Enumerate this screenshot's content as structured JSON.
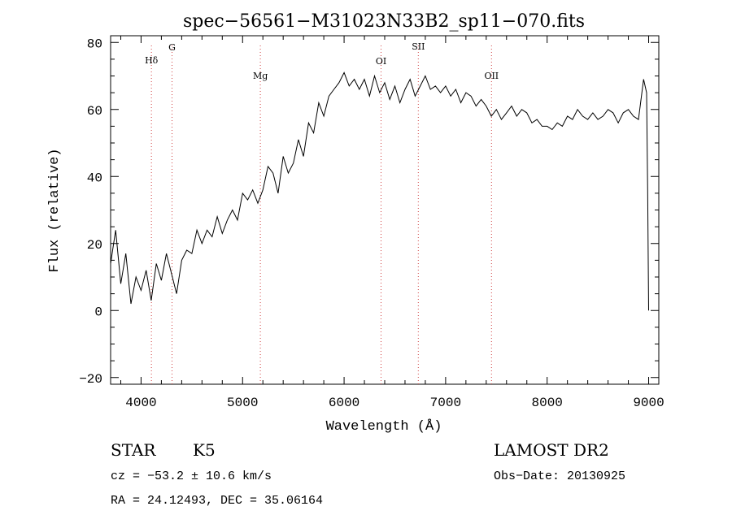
{
  "chart_data": {
    "type": "line",
    "title": "spec−56561−M31023N33B2_sp11−070.fits",
    "xlabel": "Wavelength (Å)",
    "ylabel": "Flux (relative)",
    "xlim": [
      3700,
      9100
    ],
    "ylim": [
      -22,
      82
    ],
    "xticks": [
      4000,
      5000,
      6000,
      7000,
      8000,
      9000
    ],
    "yticks": [
      -20,
      0,
      20,
      40,
      60,
      80
    ],
    "ytick_labels": [
      "−20",
      "0",
      "20",
      "40",
      "60",
      "80"
    ],
    "grid": false,
    "line_color": "#000000",
    "marker_color": "#d04040",
    "spectral_lines": [
      {
        "label": "Hδ",
        "x": 4102
      },
      {
        "label": "G",
        "x": 4305
      },
      {
        "label": "Mg",
        "x": 5175
      },
      {
        "label": "OI",
        "x": 6364
      },
      {
        "label": "SII",
        "x": 6731
      },
      {
        "label": "OII",
        "x": 7452
      }
    ],
    "series": [
      {
        "x": [
          3700,
          3750,
          3800,
          3850,
          3900,
          3950,
          4000,
          4050,
          4100,
          4150,
          4200,
          4250,
          4300,
          4350,
          4400,
          4450,
          4500,
          4550,
          4600,
          4650,
          4700,
          4750,
          4800,
          4850,
          4900,
          4950,
          5000,
          5050,
          5100,
          5150,
          5200,
          5250,
          5300,
          5350,
          5400,
          5450,
          5500,
          5550,
          5600,
          5650,
          5700,
          5750,
          5800,
          5850,
          5900,
          5950,
          6000,
          6050,
          6100,
          6150,
          6200,
          6250,
          6300,
          6350,
          6400,
          6450,
          6500,
          6550,
          6600,
          6650,
          6700,
          6750,
          6800,
          6850,
          6900,
          6950,
          7000,
          7050,
          7100,
          7150,
          7200,
          7250,
          7300,
          7350,
          7400,
          7450,
          7500,
          7550,
          7600,
          7650,
          7700,
          7750,
          7800,
          7850,
          7900,
          7950,
          8000,
          8050,
          8100,
          8150,
          8200,
          8250,
          8300,
          8350,
          8400,
          8450,
          8500,
          8550,
          8600,
          8650,
          8700,
          8750,
          8800,
          8850,
          8900,
          8950,
          8980,
          8990,
          9000
        ],
        "y": [
          14,
          24,
          8,
          17,
          2,
          10,
          6,
          12,
          3,
          14,
          9,
          17,
          11,
          5,
          15,
          18,
          17,
          24,
          20,
          24,
          22,
          28,
          23,
          27,
          30,
          27,
          35,
          33,
          36,
          32,
          36,
          43,
          41,
          35,
          46,
          41,
          44,
          51,
          46,
          56,
          53,
          62,
          58,
          64,
          66,
          68,
          71,
          67,
          69,
          66,
          69,
          64,
          70,
          65,
          68,
          63,
          67,
          62,
          66,
          69,
          64,
          67,
          70,
          66,
          67,
          65,
          67,
          64,
          66,
          62,
          65,
          64,
          61,
          63,
          61,
          58,
          60,
          57,
          59,
          61,
          58,
          60,
          59,
          56,
          57,
          55,
          55,
          54,
          56,
          55,
          58,
          57,
          60,
          58,
          57,
          59,
          57,
          58,
          60,
          59,
          56,
          59,
          60,
          58,
          57,
          69,
          65,
          36,
          0
        ]
      }
    ]
  },
  "footer": {
    "class_label": "STAR",
    "subclass": "K5",
    "cz": "cz = −53.2 ± 10.6 km/s",
    "radec": "RA =  24.12493, DEC =  35.06164",
    "survey": "LAMOST DR2",
    "obs_date": "Obs−Date: 20130925"
  }
}
